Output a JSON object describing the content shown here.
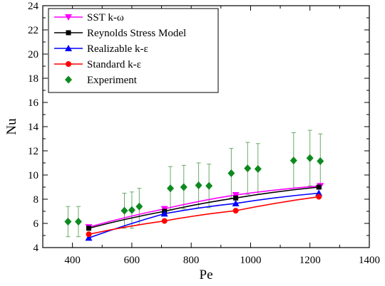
{
  "chart_data": {
    "type": "line",
    "xlabel": "Pe",
    "ylabel": "Nu",
    "xlim": [
      300,
      1400
    ],
    "ylim": [
      4,
      24
    ],
    "xticks": [
      400,
      600,
      800,
      1000,
      1200,
      1400
    ],
    "yticks": [
      4,
      6,
      8,
      10,
      12,
      14,
      16,
      18,
      20,
      22,
      24
    ],
    "xticks_minor": [
      300,
      500,
      700,
      900,
      1100,
      1300
    ],
    "legend_position": "top-left",
    "grid": false,
    "series": [
      {
        "name": "SST k-ω",
        "color": "#ff00ff",
        "marker": "triangle-down",
        "points": [
          [
            455,
            5.7
          ],
          [
            710,
            7.2
          ],
          [
            950,
            8.35
          ],
          [
            1235,
            9.1
          ]
        ]
      },
      {
        "name": "Reynolds Stress Model",
        "color": "#000000",
        "marker": "square",
        "points": [
          [
            455,
            5.6
          ],
          [
            710,
            7.0
          ],
          [
            950,
            8.1
          ],
          [
            1230,
            9.0
          ]
        ]
      },
      {
        "name": "Realizable k-ε",
        "color": "#0000ff",
        "marker": "triangle-up",
        "points": [
          [
            455,
            4.8
          ],
          [
            710,
            6.8
          ],
          [
            950,
            7.65
          ],
          [
            1230,
            8.5
          ]
        ]
      },
      {
        "name": "Standard k-ε",
        "color": "#ff0000",
        "marker": "circle",
        "points": [
          [
            455,
            5.1
          ],
          [
            710,
            6.2
          ],
          [
            950,
            7.05
          ],
          [
            1230,
            8.2
          ]
        ]
      },
      {
        "name": "Experiment",
        "color": "#0d8a1e",
        "marker": "diamond",
        "errorbar_color": "#6aaa6a",
        "points": [
          [
            385,
            6.15,
            7.4,
            4.9
          ],
          [
            420,
            6.15,
            7.4,
            4.9
          ],
          [
            575,
            7.05,
            8.5,
            5.6
          ],
          [
            600,
            7.1,
            8.6,
            5.6
          ],
          [
            625,
            7.4,
            8.9,
            5.9
          ],
          [
            730,
            8.9,
            10.7,
            7.1
          ],
          [
            775,
            9.0,
            10.8,
            7.2
          ],
          [
            825,
            9.15,
            11.0,
            7.3
          ],
          [
            860,
            9.1,
            10.9,
            7.3
          ],
          [
            935,
            10.15,
            12.2,
            8.1
          ],
          [
            990,
            10.55,
            12.7,
            8.4
          ],
          [
            1025,
            10.5,
            12.6,
            8.4
          ],
          [
            1145,
            11.2,
            13.5,
            8.9
          ],
          [
            1200,
            11.4,
            13.7,
            9.1
          ],
          [
            1235,
            11.15,
            13.4,
            8.9
          ]
        ]
      }
    ]
  }
}
